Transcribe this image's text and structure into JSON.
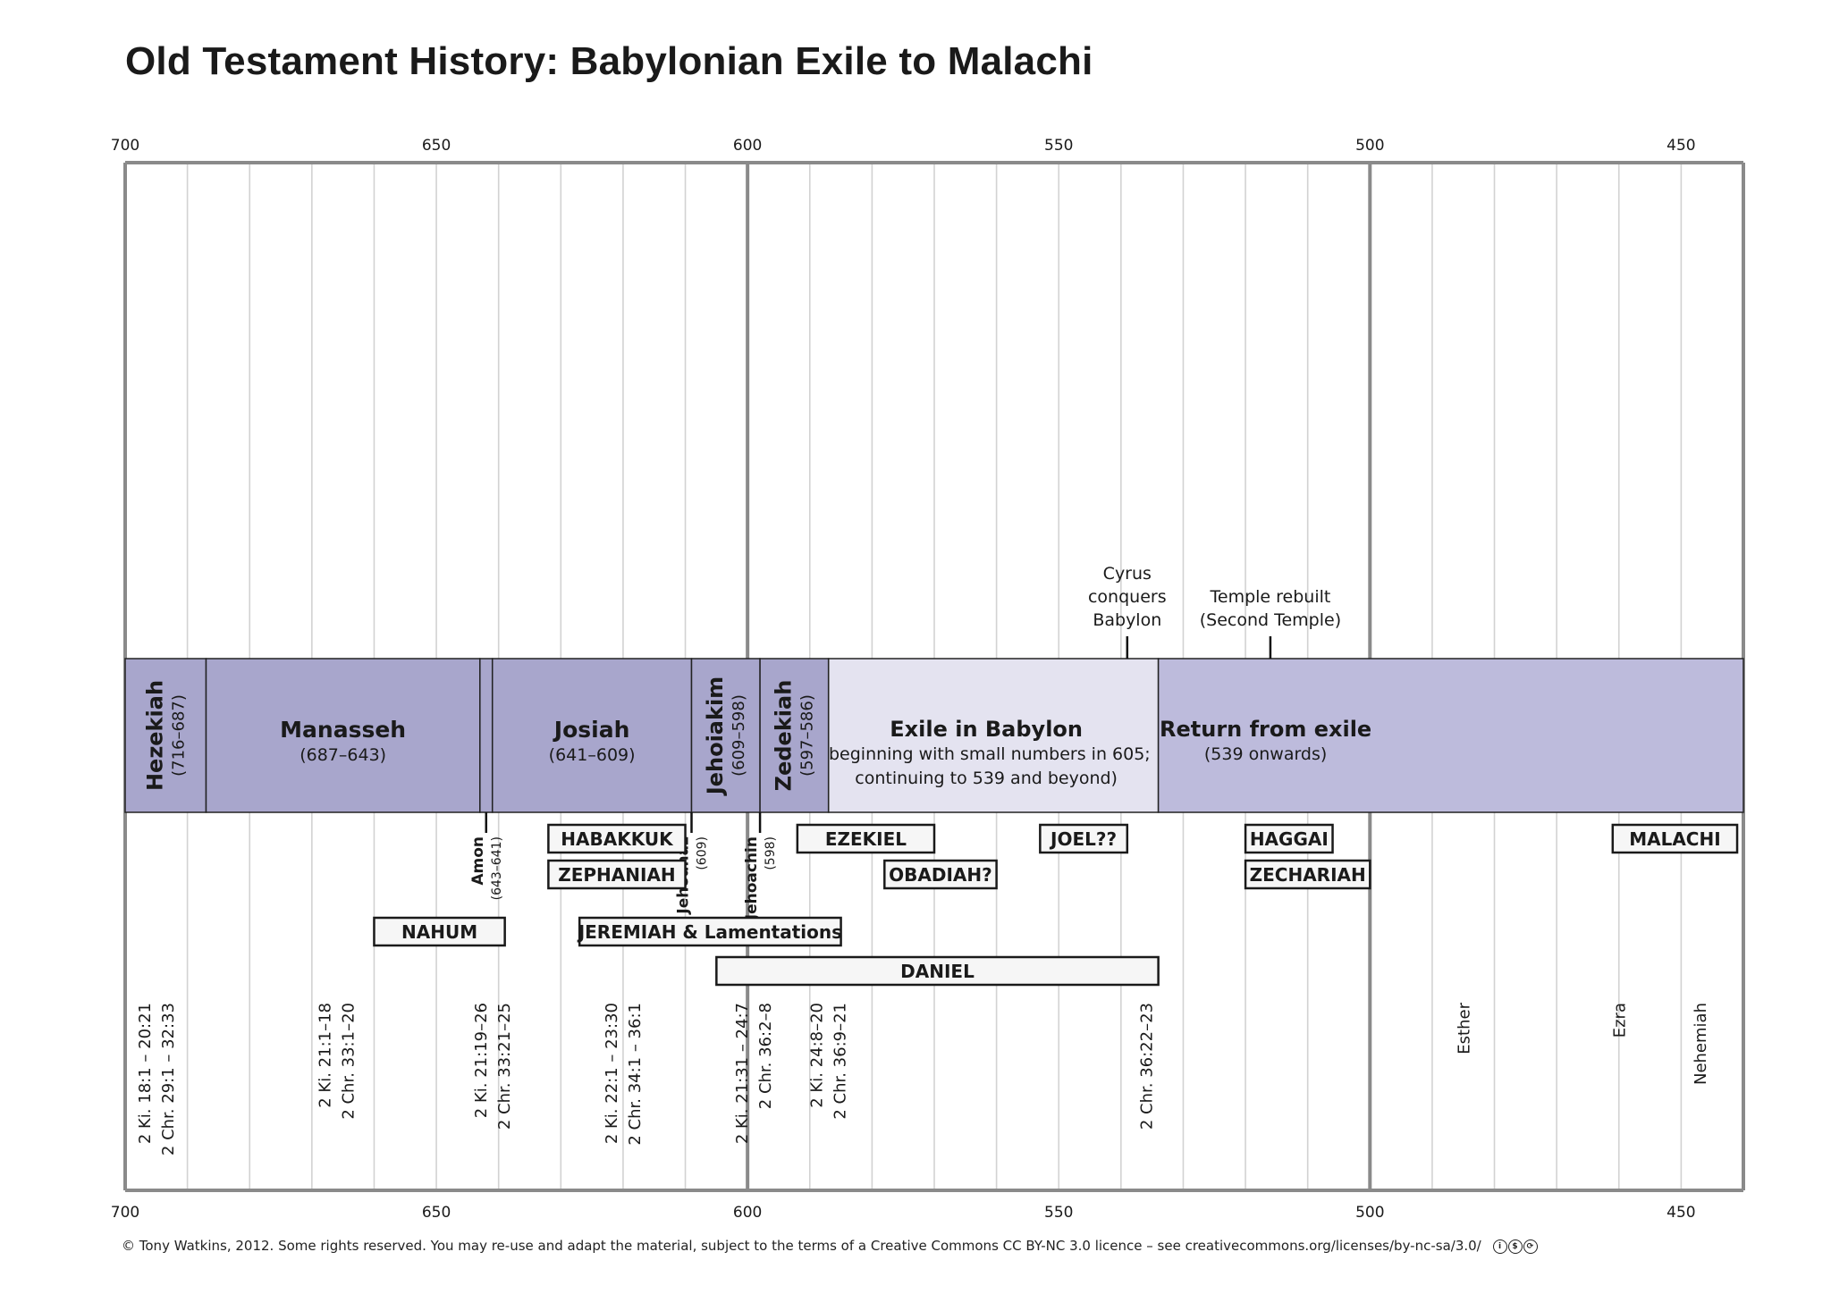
{
  "title": "Old Testament History: Babylonian Exile to Malachi",
  "footer": "© Tony Watkins, 2012. Some rights reserved. You may re-use and adapt the material, subject to the terms of a Creative Commons CC BY-NC 3.0 licence – see creativecommons.org/licenses/by-nc-sa/3.0/",
  "footer_icons": [
    "cc-by-icon",
    "cc-nc-icon",
    "cc-sa-icon"
  ],
  "colors": {
    "reign": "#a8a6cc",
    "exile": "#e4e3f0",
    "return": "#bdbbdc",
    "axis": "#8a8a8a",
    "grid": "#d2d2d2",
    "box_border": "#1a1a1a",
    "box_fill": "#f6f6f6"
  },
  "chart_data": {
    "type": "timeline",
    "xlim": [
      700,
      440
    ],
    "direction": "BC, descending left to right",
    "ticks": [
      700,
      650,
      600,
      550,
      500,
      450
    ],
    "major_lines": [
      600,
      500
    ],
    "minor_step": 10,
    "reigns": [
      {
        "name": "Hezekiah",
        "dates": "(716–687)",
        "start": 700,
        "end": 687,
        "orient": "vertical"
      },
      {
        "name": "Manasseh",
        "dates": "(687–643)",
        "start": 687,
        "end": 643,
        "orient": "horizontal"
      },
      {
        "name": "",
        "dates": "",
        "start": 643,
        "end": 641,
        "orient": "none"
      },
      {
        "name": "Josiah",
        "dates": "(641–609)",
        "start": 641,
        "end": 609,
        "orient": "horizontal"
      },
      {
        "name": "Jehoiakim",
        "dates": "(609–598)",
        "start": 609,
        "end": 598,
        "orient": "vertical"
      },
      {
        "name": "Zedekiah",
        "dates": "(597–586)",
        "start": 598,
        "end": 587,
        "orient": "vertical"
      }
    ],
    "periods": [
      {
        "name": "Exile in Babylon",
        "lines": [
          "(beginning with small numbers in 605;",
          "continuing to 539 and beyond)"
        ],
        "start": 587,
        "end": 534,
        "kind": "exile"
      },
      {
        "name": "Return from exile",
        "lines": [
          "(539 onwards)"
        ],
        "start": 534,
        "end": 440,
        "kind": "return"
      }
    ],
    "short_reigns": [
      {
        "name": "Amon",
        "dates": "(643–641)",
        "year": 642
      },
      {
        "name": "Jehoahaz",
        "dates": "(609)",
        "year": 609
      },
      {
        "name": "Jehoachin",
        "dates": "(598)",
        "year": 598
      }
    ],
    "events": [
      {
        "lines": [
          "Cyrus",
          "conquers",
          "Babylon"
        ],
        "year": 539
      },
      {
        "lines": [
          "Temple rebuilt",
          "(Second Temple)"
        ],
        "year": 516
      }
    ],
    "prophets": [
      {
        "name": "HABAKKUK",
        "start": 632,
        "end": 610,
        "row": 0
      },
      {
        "name": "ZEPHANIAH",
        "start": 632,
        "end": 610,
        "row": 1
      },
      {
        "name": "EZEKIEL",
        "start": 592,
        "end": 570,
        "row": 0
      },
      {
        "name": "OBADIAH?",
        "start": 578,
        "end": 560,
        "row": 1
      },
      {
        "name": "JOEL??",
        "start": 553,
        "end": 539,
        "row": 0
      },
      {
        "name": "HAGGAI",
        "start": 520,
        "end": 506,
        "row": 0
      },
      {
        "name": "ZECHARIAH",
        "start": 520,
        "end": 500,
        "row": 1
      },
      {
        "name": "MALACHI",
        "start": 461,
        "end": 441,
        "row": 0
      },
      {
        "name": "NAHUM",
        "start": 660,
        "end": 639,
        "row": 2
      },
      {
        "name": "JEREMIAH & Lamentations",
        "start": 627,
        "end": 585,
        "row": 2
      },
      {
        "name": "DANIEL",
        "start": 605,
        "end": 534,
        "row": 3
      }
    ],
    "references": [
      {
        "lines": [
          "2 Ki. 18:1 – 20:21",
          "2 Chr. 29:1 – 32:33"
        ],
        "year": 696
      },
      {
        "lines": [
          "2 Ki. 21:1–18",
          "2 Chr. 33:1–20"
        ],
        "year": 667
      },
      {
        "lines": [
          "2 Ki. 21:19–26",
          "2 Chr. 33:21–25"
        ],
        "year": 642
      },
      {
        "lines": [
          "2 Ki. 22:1 – 23:30",
          "2 Chr. 34:1 – 36:1"
        ],
        "year": 621
      },
      {
        "lines": [
          "2 Ki. 21:31 – 24:7",
          "2 Chr. 36:2–8"
        ],
        "year": 600
      },
      {
        "lines": [
          "2 Ki. 24:8–20",
          "2 Chr. 36:9–21"
        ],
        "year": 588
      },
      {
        "lines": [
          "2 Chr. 36:22–23"
        ],
        "year": 535
      },
      {
        "lines": [
          "Esther"
        ],
        "year": 484
      },
      {
        "lines": [
          "Ezra"
        ],
        "year": 459
      },
      {
        "lines": [
          "Nehemiah"
        ],
        "year": 446
      }
    ]
  }
}
